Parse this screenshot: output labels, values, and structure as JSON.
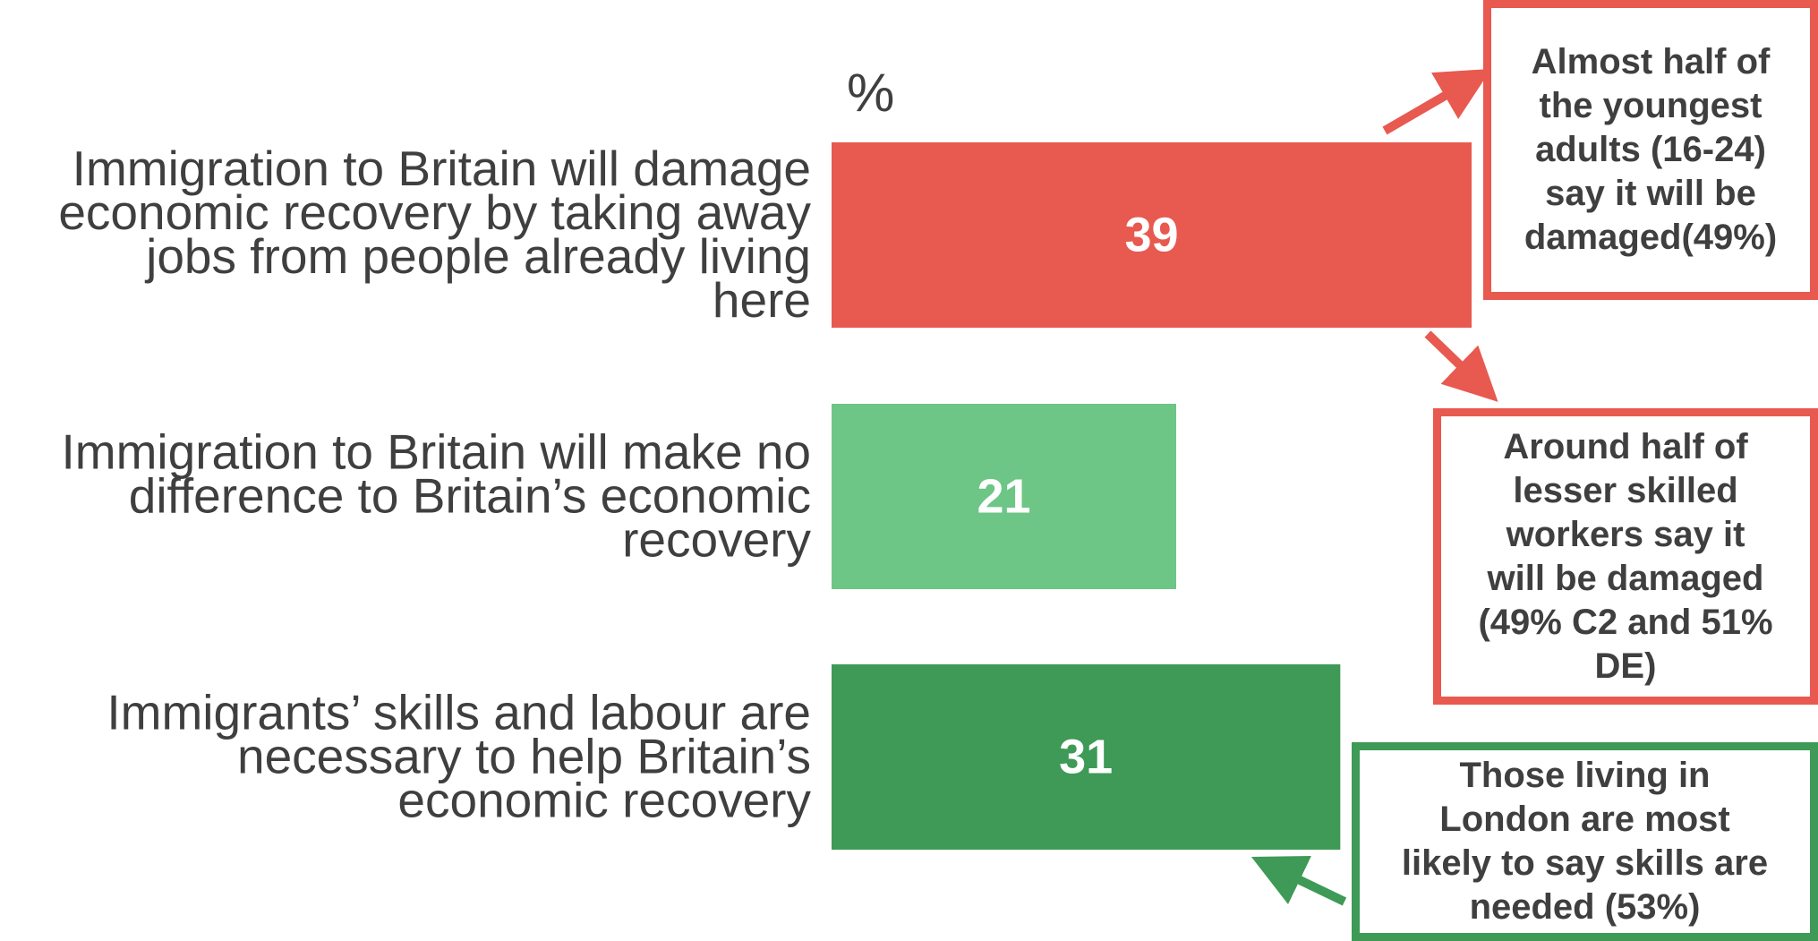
{
  "chart_data": {
    "type": "bar",
    "orientation": "horizontal",
    "unit_label": "%",
    "categories": [
      [
        "Immigration to Britain will damage",
        "economic recovery by taking away",
        "jobs from people already living",
        "here"
      ],
      [
        "Immigration to Britain will make no",
        "difference to Britain’s economic",
        "recovery"
      ],
      [
        "Immigrants’ skills and labour are",
        "necessary to help Britain’s",
        "economic recovery"
      ]
    ],
    "values": [
      39,
      21,
      31
    ],
    "bar_colors": [
      "#e8594f",
      "#6dc586",
      "#3e9a56"
    ],
    "xlim": [
      0,
      39
    ],
    "grid": false,
    "legend": "none"
  },
  "callouts": [
    {
      "lines": [
        "Almost half of",
        "the youngest",
        "adults (16-24)",
        "say it will be",
        "damaged(49%)"
      ],
      "color": "#e8594f"
    },
    {
      "lines": [
        "Around half of",
        "lesser skilled",
        "workers say it",
        "will be damaged",
        "(49% C2 and 51%",
        "DE)"
      ],
      "color": "#e8594f"
    },
    {
      "lines": [
        "Those living in",
        "London are most",
        "likely to say skills are",
        "needed (53%)"
      ],
      "color": "#3e9a56"
    }
  ]
}
